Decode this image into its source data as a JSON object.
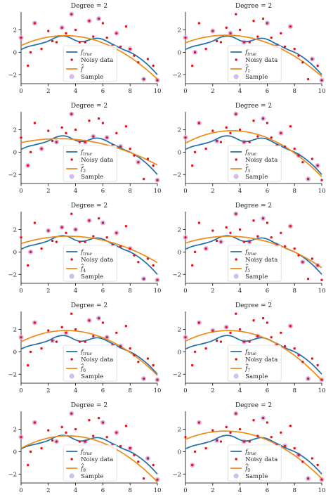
{
  "chart_data": {
    "type": "line",
    "layout": "5x2 grid of subplots",
    "title": "Degree = 2",
    "xlim": [
      0,
      10
    ],
    "ylim": [
      -2.8,
      3.6
    ],
    "xticks": [
      "0",
      "2",
      "4",
      "6",
      "8",
      "10"
    ],
    "yticks": [
      "-2",
      "0",
      "2"
    ],
    "legend_position": "lower-center",
    "colors": {
      "true": "#1f6fa8",
      "fit": "#ef8a17",
      "noisy": "#e8101a",
      "sample": "#c9b3ea",
      "axis": "#000000"
    },
    "legend": {
      "true": "f_true",
      "noisy": "Noisy data",
      "sample": "Sample"
    },
    "true_curve": {
      "x": [
        0,
        0.5,
        1,
        1.5,
        2,
        2.5,
        3,
        3.5,
        4,
        4.5,
        5,
        5.5,
        6,
        6.5,
        7,
        7.5,
        8,
        8.5,
        9,
        9.5,
        10
      ],
      "y": [
        0.25,
        0.5,
        0.65,
        0.8,
        1.0,
        1.3,
        1.45,
        1.35,
        1.05,
        0.95,
        1.1,
        1.25,
        1.15,
        0.85,
        0.55,
        0.25,
        0.0,
        -0.35,
        -0.8,
        -1.35,
        -2.0
      ]
    },
    "noisy_data": {
      "x": [
        0,
        0.5,
        0.7,
        1,
        1.5,
        2,
        2.3,
        2.6,
        3,
        3.3,
        3.7,
        4,
        4.3,
        4.7,
        5,
        5.3,
        5.7,
        6,
        6.3,
        6.7,
        7,
        7.3,
        7.7,
        8,
        8.3,
        8.6,
        9,
        9.3,
        9.7,
        10
      ],
      "y": [
        1.3,
        -1.2,
        0.0,
        2.6,
        0.3,
        1.9,
        1.0,
        0.9,
        2.2,
        1.7,
        3.4,
        2.0,
        0.9,
        0.9,
        2.8,
        1.4,
        3.0,
        2.6,
        1.3,
        0.6,
        1.7,
        0.5,
        2.3,
        0.3,
        -0.3,
        -0.9,
        -2.4,
        -0.6,
        -1.2,
        -2.5
      ]
    },
    "panels": [
      {
        "title": "Degree = 2",
        "fit_label": "f",
        "fit_subscript": "",
        "fit_coeffs": [
          0.6,
          0.55,
          -0.085
        ],
        "sample_index": [
          0,
          3,
          8,
          10,
          14,
          16,
          20,
          23,
          26,
          29
        ]
      },
      {
        "title": "Degree = 2",
        "fit_label": "f",
        "fit_subscript": "1",
        "fit_coeffs": [
          0.85,
          0.45,
          -0.075
        ],
        "sample_index": [
          0,
          2,
          5,
          9,
          12,
          17,
          19,
          22,
          27,
          29
        ]
      },
      {
        "title": "Degree = 2",
        "fit_label": "f",
        "fit_subscript": "2",
        "fit_coeffs": [
          0.85,
          0.25,
          -0.045
        ],
        "sample_index": [
          1,
          4,
          7,
          10,
          13,
          15,
          18,
          21,
          25,
          29
        ]
      },
      {
        "title": "Degree = 2",
        "fit_label": "f",
        "fit_subscript": "3",
        "fit_coeffs": [
          0.8,
          0.65,
          -0.095
        ],
        "sample_index": [
          0,
          3,
          6,
          10,
          12,
          16,
          20,
          24,
          26,
          28
        ]
      },
      {
        "title": "Degree = 2",
        "fit_label": "f",
        "fit_subscript": "4",
        "fit_coeffs": [
          0.75,
          0.38,
          -0.055
        ],
        "sample_index": [
          2,
          5,
          8,
          11,
          14,
          17,
          20,
          23,
          26,
          29
        ]
      },
      {
        "title": "Degree = 2",
        "fit_label": "f",
        "fit_subscript": "5",
        "fit_coeffs": [
          0.8,
          0.38,
          -0.06
        ],
        "sample_index": [
          0,
          4,
          7,
          10,
          13,
          16,
          19,
          22,
          25,
          28
        ]
      },
      {
        "title": "Degree = 2",
        "fit_label": "f",
        "fit_subscript": "6",
        "fit_coeffs": [
          0.9,
          0.6,
          -0.09
        ],
        "sample_index": [
          0,
          3,
          6,
          9,
          14,
          16,
          18,
          21,
          26,
          29
        ]
      },
      {
        "title": "Degree = 2",
        "fit_label": "f",
        "fit_subscript": "7",
        "fit_coeffs": [
          0.95,
          0.6,
          -0.095
        ],
        "sample_index": [
          0,
          3,
          5,
          8,
          12,
          15,
          19,
          22,
          26,
          29
        ]
      },
      {
        "title": "Degree = 2",
        "fit_label": "f",
        "fit_subscript": "8",
        "fit_coeffs": [
          0.3,
          0.65,
          -0.095
        ],
        "sample_index": [
          0,
          3,
          7,
          10,
          13,
          17,
          20,
          23,
          27,
          29
        ]
      },
      {
        "title": "Degree = 2",
        "fit_label": "f",
        "fit_subscript": "9",
        "fit_coeffs": [
          1.1,
          0.5,
          -0.085
        ],
        "sample_index": [
          1,
          3,
          6,
          10,
          12,
          16,
          21,
          24,
          26,
          29
        ]
      }
    ]
  }
}
